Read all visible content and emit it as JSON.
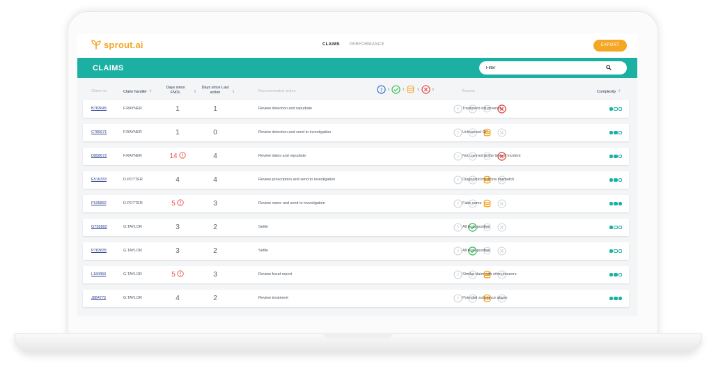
{
  "app": {
    "logo_text": "sprout.ai",
    "nav_tabs": [
      {
        "label": "CLAIMS",
        "active": true
      },
      {
        "label": "PERFORMANCE",
        "active": false
      }
    ],
    "export_label": "EXPORT"
  },
  "header": {
    "title": "CLAIMS",
    "filter_placeholder": "Filter"
  },
  "columns": {
    "claim_no": "Claim no.",
    "claim_handler": "Claim handler",
    "days_fnol_line1": "Days since",
    "days_fnol_line2": "FNOL",
    "days_action_line1": "Days since Last",
    "days_action_line2": "action",
    "recommended_action": "Recommended action",
    "reason": "Reason",
    "complexity": "Complexity"
  },
  "colors": {
    "teal": "#1cb0a3",
    "orange": "#f5a623",
    "green": "#3cc35a",
    "red": "#e8504a",
    "blue": "#2d6fd6",
    "muted": "#c9cdd2"
  },
  "rows": [
    {
      "claim_no": "B783645",
      "handler": "F.RAYNER",
      "days_fnol": "1",
      "fnol_alert": false,
      "days_action": "1",
      "action": "Review detection and repudiate",
      "status": "reject",
      "reason": "Treatment not covered",
      "complexity": 1
    },
    {
      "claim_no": "C785671",
      "handler": "F.RAYNER",
      "days_fnol": "1",
      "fnol_alert": false,
      "days_action": "0",
      "action": "Review detection and send to investigation",
      "status": "investigate",
      "reason": "Unlicensed GP",
      "complexity": 2
    },
    {
      "claim_no": "D858672",
      "handler": "F.RAYNER",
      "days_fnol": "14",
      "fnol_alert": true,
      "days_action": "4",
      "action": "Review dates and repudiate",
      "status": "reject",
      "reason": "Not covered at the time of incident",
      "complexity": 2
    },
    {
      "claim_no": "E516333",
      "handler": "D.POTTER",
      "days_fnol": "4",
      "fnol_alert": false,
      "days_action": "4",
      "action": "Review prescription and send to investigation",
      "status": "investigate",
      "reason": "Diagnostic/medicine mismatch",
      "complexity": 2
    },
    {
      "claim_no": "F535892",
      "handler": "D.POTTER",
      "days_fnol": "5",
      "fnol_alert": true,
      "days_action": "3",
      "action": "Review name and send to investigation",
      "status": "investigate",
      "reason": "Fake name",
      "complexity": 3
    },
    {
      "claim_no": "G756892",
      "handler": "G.TAYLOR",
      "days_fnol": "3",
      "fnol_alert": false,
      "days_action": "2",
      "action": "Settle",
      "status": "settle",
      "reason": "All tests positive",
      "complexity": 1
    },
    {
      "claim_no": "P783835",
      "handler": "G.TAYLOR",
      "days_fnol": "3",
      "fnol_alert": false,
      "days_action": "2",
      "action": "Settle",
      "status": "settle",
      "reason": "All tests positive",
      "complexity": 1
    },
    {
      "claim_no": "L184356",
      "handler": "G.TAYLOR",
      "days_fnol": "5",
      "fnol_alert": true,
      "days_action": "3",
      "action": "Review fraud report",
      "status": "investigate",
      "reason": "Similar claim with other insurers",
      "complexity": 2
    },
    {
      "claim_no": "J884775",
      "handler": "G.TAYLOR",
      "days_fnol": "4",
      "fnol_alert": false,
      "days_action": "2",
      "action": "Review treatment",
      "status": "investigate",
      "reason": "Potential substance abuse",
      "complexity": 3
    }
  ]
}
